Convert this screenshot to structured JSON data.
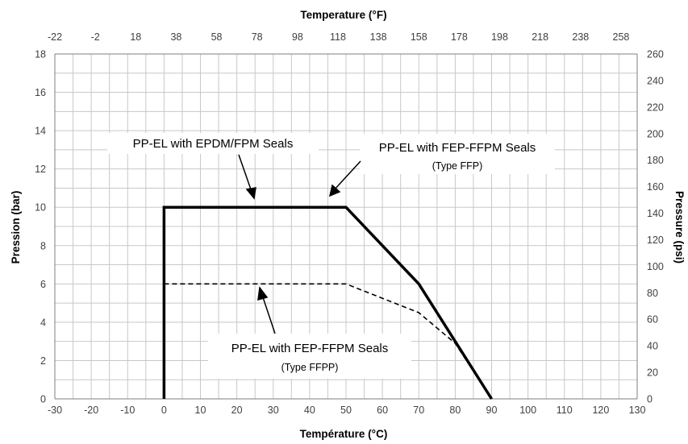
{
  "chart_data": {
    "type": "line",
    "x_axis": {
      "label": "Température (°C)",
      "range": [
        -30,
        130
      ],
      "ticks": [
        -30,
        -20,
        -10,
        0,
        10,
        20,
        30,
        40,
        50,
        60,
        70,
        80,
        90,
        100,
        110,
        120,
        130
      ]
    },
    "x2_axis": {
      "label": "Temperature (°F)",
      "ticks": [
        -22,
        -2,
        18,
        38,
        58,
        78,
        98,
        118,
        138,
        158,
        178,
        198,
        218,
        238,
        258
      ]
    },
    "y_axis": {
      "label": "Pression (bar)",
      "range": [
        0,
        18
      ],
      "ticks": [
        0,
        2,
        4,
        6,
        8,
        10,
        12,
        14,
        16,
        18
      ]
    },
    "y2_axis": {
      "label": "Pressure (psi)",
      "range": [
        0,
        260
      ],
      "ticks": [
        0,
        20,
        40,
        60,
        80,
        100,
        120,
        140,
        160,
        180,
        200,
        220,
        240,
        260
      ]
    },
    "grid": true,
    "series": [
      {
        "style": "solid",
        "color": "#000000",
        "x": [
          0,
          0,
          50,
          70,
          90
        ],
        "y": [
          0,
          10,
          10,
          6,
          0
        ]
      },
      {
        "style": "dashed",
        "color": "#000000",
        "x": [
          0,
          50,
          70,
          80,
          90
        ],
        "y": [
          6,
          6,
          4.5,
          2.9,
          0
        ]
      }
    ],
    "annotations": [
      {
        "text": "PP-EL with EPDM/FPM Seals",
        "sub": ""
      },
      {
        "text": "PP-EL with FEP-FFPM Seals",
        "sub": "(Type FFP)"
      },
      {
        "text": "PP-EL with FEP-FFPM Seals",
        "sub": "(Type FFPP)"
      }
    ]
  }
}
